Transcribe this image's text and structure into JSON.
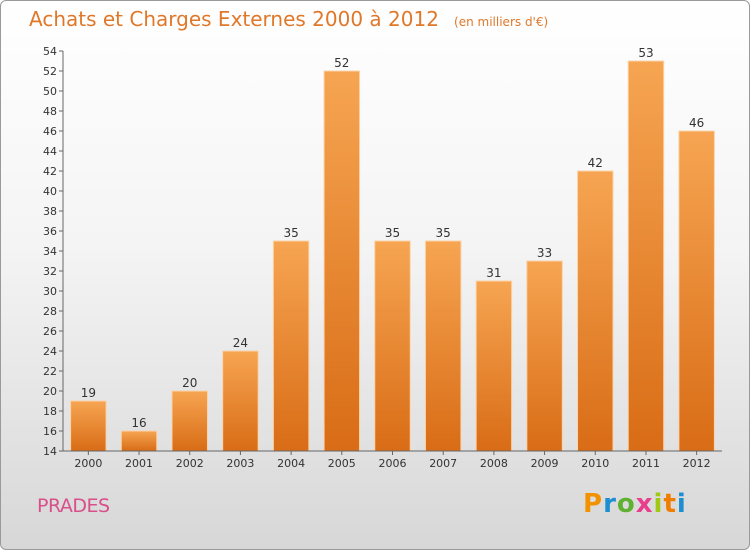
{
  "chart_data": {
    "type": "bar",
    "title": "Achats et Charges Externes 2000 à 2012",
    "unit_label": "(en milliers d'€)",
    "categories": [
      "2000",
      "2001",
      "2002",
      "2003",
      "2004",
      "2005",
      "2006",
      "2007",
      "2008",
      "2009",
      "2010",
      "2011",
      "2012"
    ],
    "values": [
      19,
      16,
      20,
      24,
      35,
      52,
      35,
      35,
      31,
      33,
      42,
      53,
      46
    ],
    "data_labels": [
      "19",
      "16",
      "20",
      "24",
      "35",
      "52",
      "35",
      "35",
      "31",
      "33",
      "42",
      "53",
      "46"
    ],
    "xlabel": "",
    "ylabel": "",
    "ylim": [
      14,
      54
    ],
    "yticks": [
      "14",
      "16",
      "18",
      "20",
      "22",
      "24",
      "26",
      "28",
      "30",
      "32",
      "34",
      "36",
      "38",
      "40",
      "42",
      "44",
      "46",
      "48",
      "50",
      "52",
      "54"
    ],
    "grid": false,
    "bar_color": "#ef8f38"
  },
  "footer": {
    "commune": "PRADES",
    "logo": "Proxiti"
  }
}
